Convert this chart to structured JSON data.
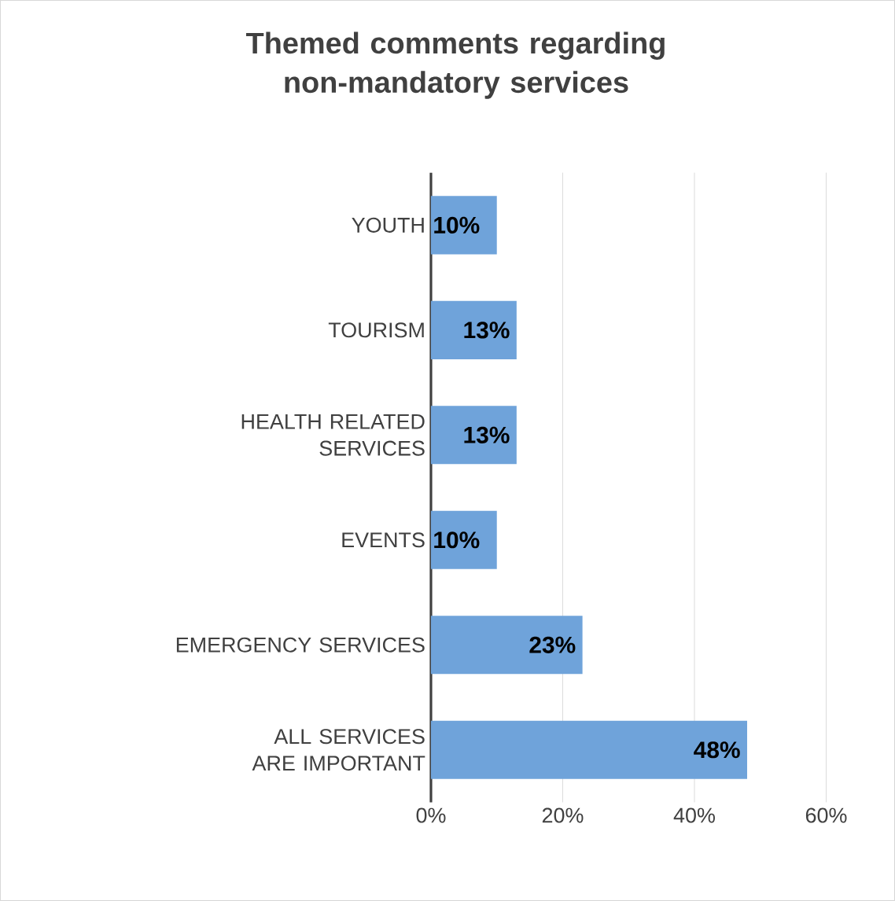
{
  "chart_data": {
    "type": "bar",
    "orientation": "horizontal",
    "title": "Themed comments regarding non-mandatory services",
    "categories": [
      "YOUTH",
      "TOURISM",
      "HEALTH RELATED SERVICES",
      "EVENTS",
      "EMERGENCY SERVICES",
      "ALL SERVICES ARE IMPORTANT"
    ],
    "values": [
      10,
      13,
      13,
      10,
      23,
      48
    ],
    "value_labels": [
      "10%",
      "13%",
      "13%",
      "10%",
      "23%",
      "48%"
    ],
    "color": "#6fa3da",
    "xlim": [
      0,
      60
    ],
    "xticks": [
      {
        "value": 0,
        "label": "0%"
      },
      {
        "value": 20,
        "label": "20%"
      },
      {
        "value": 40,
        "label": "40%"
      },
      {
        "value": 60,
        "label": "60%"
      }
    ],
    "grid": "x"
  }
}
